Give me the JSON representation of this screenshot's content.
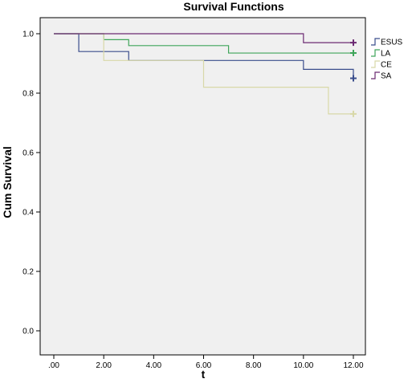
{
  "chart_data": {
    "type": "line",
    "step": true,
    "title": "Survival Functions",
    "xlabel": "t",
    "ylabel": "Cum Survival",
    "xlim": [
      0,
      12
    ],
    "ylim": [
      0,
      1
    ],
    "x_ticks": [
      0,
      2,
      4,
      6,
      8,
      10,
      12
    ],
    "x_tick_labels": [
      ".00",
      "2.00",
      "4.00",
      "6.00",
      "8.00",
      "10.00",
      "12.00"
    ],
    "y_ticks": [
      0,
      0.2,
      0.4,
      0.6,
      0.8,
      1.0
    ],
    "y_tick_labels": [
      "0.0",
      "0.2",
      "0.4",
      "0.6",
      "0.8",
      "1.0"
    ],
    "grid": false,
    "legend": "right",
    "colors": {
      "plot_background": "#f0f0f0"
    },
    "series": [
      {
        "name": "ESUS",
        "color": "#3a4d8c",
        "x": [
          0,
          1,
          3,
          10,
          12
        ],
        "y": [
          1.0,
          0.94,
          0.91,
          0.88,
          0.85
        ],
        "censored": [
          [
            12,
            0.85
          ]
        ]
      },
      {
        "name": "LA",
        "color": "#3fa55a",
        "x": [
          0,
          2,
          3,
          7,
          12
        ],
        "y": [
          1.0,
          0.98,
          0.96,
          0.935,
          0.935
        ],
        "censored": [
          [
            12,
            0.935
          ]
        ]
      },
      {
        "name": "CE",
        "color": "#d8d8a8",
        "x": [
          0,
          2,
          6,
          11,
          12
        ],
        "y": [
          1.0,
          0.91,
          0.82,
          0.73,
          0.73
        ],
        "censored": [
          [
            12,
            0.73
          ]
        ]
      },
      {
        "name": "SA",
        "color": "#6b2a72",
        "x": [
          0,
          10,
          12
        ],
        "y": [
          1.0,
          0.97,
          0.97
        ],
        "censored": [
          [
            12,
            0.97
          ]
        ]
      }
    ]
  }
}
